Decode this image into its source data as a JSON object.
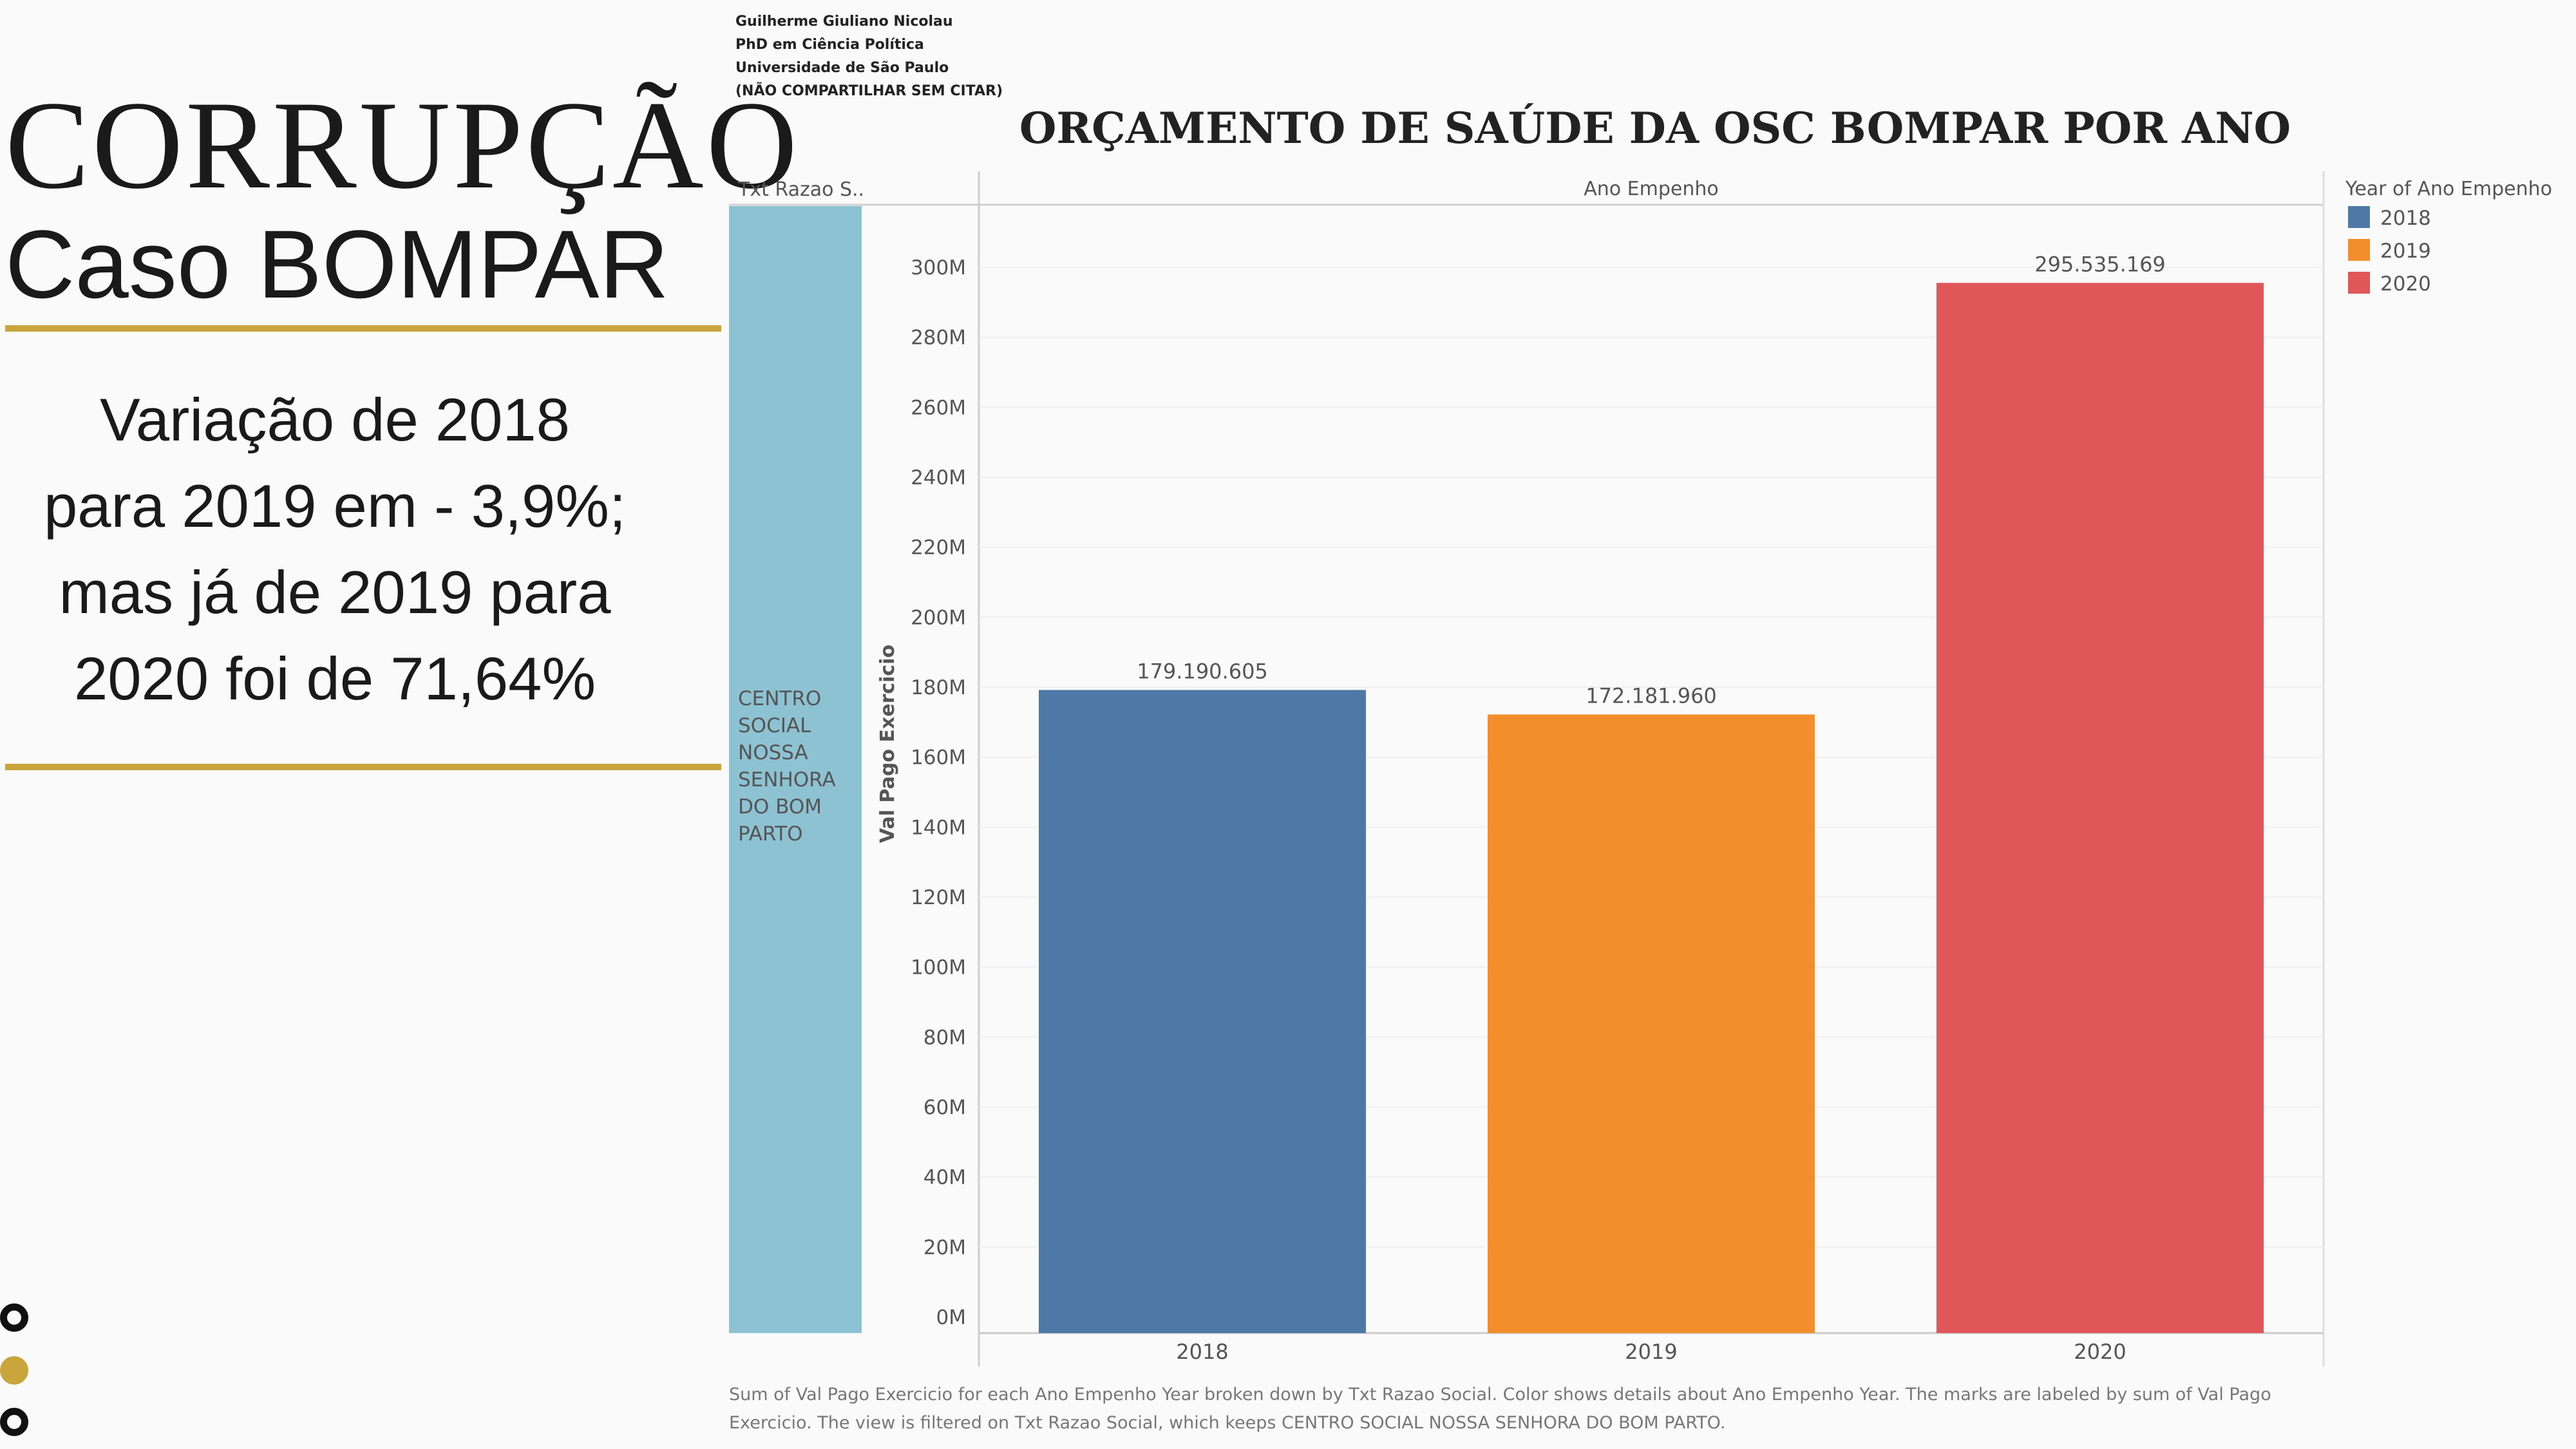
{
  "slide": {
    "title": "CORRUPÇÃO",
    "subtitle": "Caso BOMPAR",
    "summary_lines": [
      "Variação de 2018",
      "para 2019 em - 3,9%;",
      "mas já de 2019 para",
      "2020 foi de 71,64%"
    ],
    "accent_color": "#c9a53d"
  },
  "author": {
    "lines": [
      "Guilherme Giuliano Nicolau",
      "PhD em Ciência Política",
      "Universidade de São Paulo",
      "(NÃO COMPARTILHAR SEM CITAR)"
    ]
  },
  "chart_data": {
    "type": "bar",
    "title": "ORÇAMENTO DE SAÚDE DA OSC BOMPAR POR ANO",
    "row_header": "Txt Razao S..",
    "column_header": "Ano Empenho",
    "row_label": "CENTRO SOCIAL NOSSA SENHORA DO BOM PARTO",
    "row_label_lines": [
      "CENTRO",
      "SOCIAL",
      "NOSSA",
      "SENHORA",
      "DO BOM",
      "PARTO"
    ],
    "ylabel": "Val Pago Exercicio",
    "xlabel": "",
    "categories": [
      "2018",
      "2019",
      "2020"
    ],
    "values": [
      179190605,
      172181960,
      295535169
    ],
    "value_labels": [
      "179.190.605",
      "172.181.960",
      "295.535.169"
    ],
    "colors": [
      "#4e79a7",
      "#f28e2b",
      "#e15759"
    ],
    "ylim": [
      0,
      316000000
    ],
    "yticks": [
      0,
      20000000,
      40000000,
      60000000,
      80000000,
      100000000,
      120000000,
      140000000,
      160000000,
      180000000,
      200000000,
      220000000,
      240000000,
      260000000,
      280000000,
      300000000
    ],
    "ytick_labels": [
      "0M",
      "20M",
      "40M",
      "60M",
      "80M",
      "100M",
      "120M",
      "140M",
      "160M",
      "180M",
      "200M",
      "220M",
      "240M",
      "260M",
      "280M",
      "300M"
    ],
    "legend": {
      "title": "Year of Ano Empenho",
      "position": "right",
      "entries": [
        "2018",
        "2019",
        "2020"
      ]
    },
    "row_color": "#8dc2d3",
    "grid": true
  },
  "footnote": "Sum of Val Pago Exercicio for each Ano Empenho Year broken down by Txt Razao Social.  Color shows details about Ano Empenho Year.  The marks are labeled by sum of Val Pago Exercicio. The view is filtered on Txt Razao Social, which keeps CENTRO SOCIAL NOSSA SENHORA DO BOM PARTO."
}
